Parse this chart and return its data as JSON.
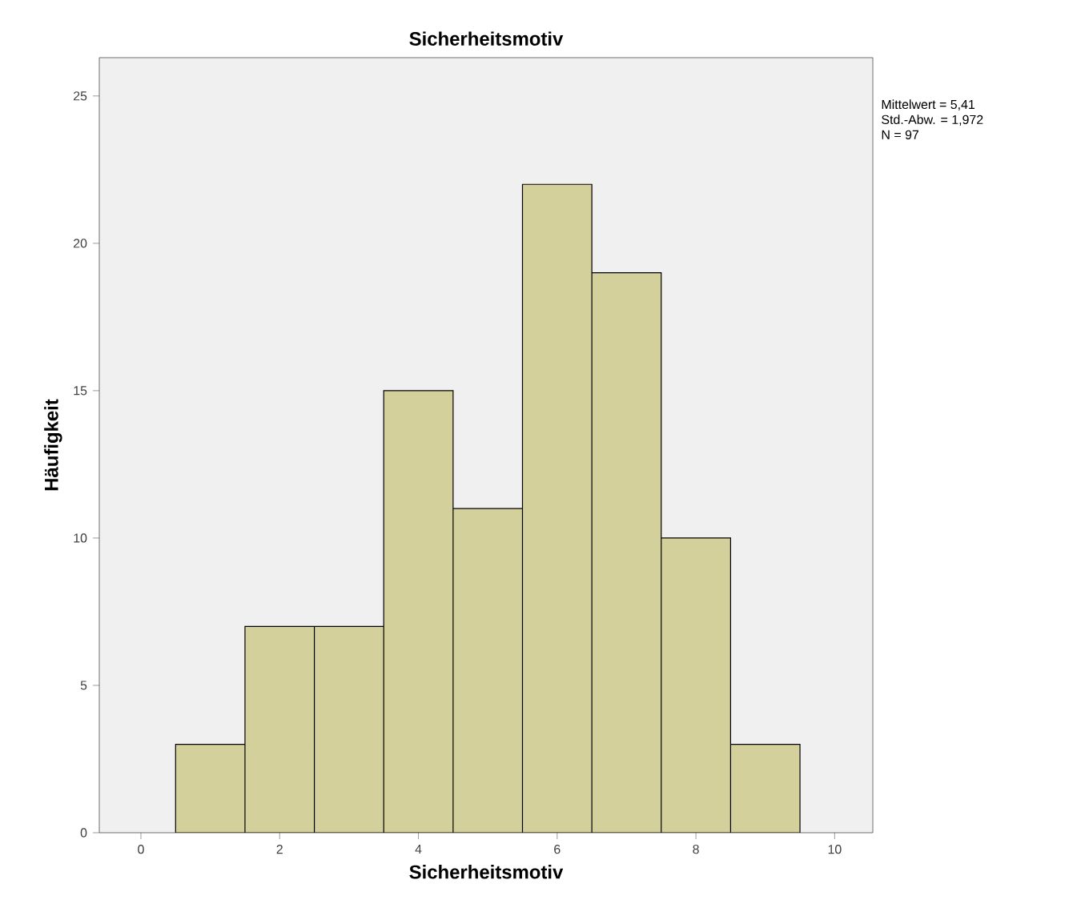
{
  "chart_data": {
    "type": "histogram",
    "title": "Sicherheitsmotiv",
    "xlabel": "Sicherheitsmotiv",
    "ylabel": "Häufigkeit",
    "bins": [
      0.5,
      1.5,
      2.5,
      3.5,
      4.5,
      5.5,
      6.5,
      7.5,
      8.5,
      9.5
    ],
    "values": [
      3,
      7,
      7,
      15,
      11,
      22,
      19,
      10,
      3
    ],
    "color": "#d4d09c",
    "xlim": [
      -0.6,
      10.55
    ],
    "ylim": [
      0,
      26.3
    ],
    "xticks": [
      0,
      2,
      4,
      6,
      8,
      10
    ],
    "yticks": [
      0,
      5,
      10,
      15,
      20,
      25
    ],
    "annotations": [
      "Mittelwert = 5,41",
      "Std.-Abw. = 1,972",
      "N = 97"
    ]
  }
}
